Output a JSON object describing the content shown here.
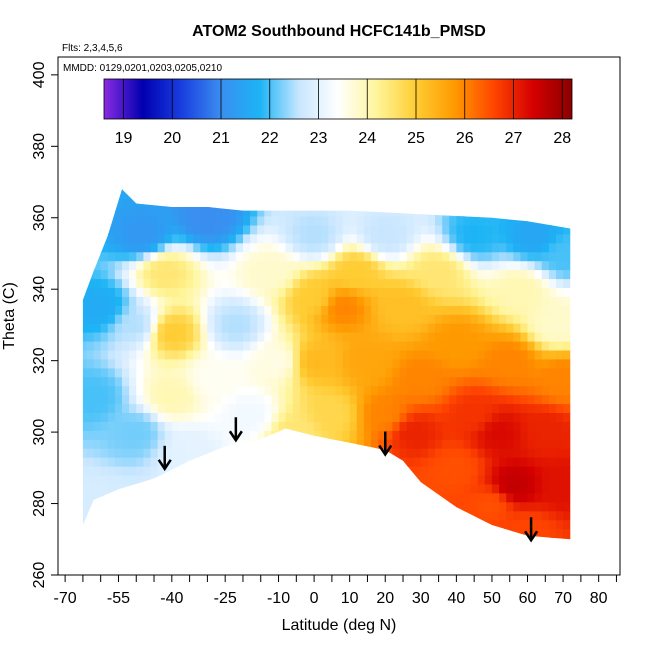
{
  "chart_data": {
    "type": "heatmap",
    "title": "ATOM2 Southbound HCFC141b_PMSD",
    "flights_note": "Flts: 2,3,4,5,6",
    "dates_note": "MMDD: 0129,0201,0203,0205,0210",
    "xlabel": "Latitude (deg N)",
    "ylabel": "Theta (C)",
    "xlim": [
      -72,
      86
    ],
    "ylim": [
      260,
      405
    ],
    "x_ticks": [
      -70,
      -55,
      -40,
      -25,
      -10,
      0,
      10,
      20,
      30,
      40,
      50,
      60,
      70,
      80
    ],
    "x_tick_labels": [
      "-70",
      "-55",
      "-40",
      "-25",
      "-10",
      "0",
      "10",
      "20",
      "30",
      "40",
      "50",
      "60",
      "70",
      "80"
    ],
    "x_minor_ticks": [
      -65,
      -60,
      -50,
      -45,
      -35,
      -30,
      -20,
      -15,
      -5,
      5,
      15,
      25,
      35,
      45,
      55,
      65,
      75,
      85
    ],
    "y_ticks": [
      260,
      280,
      300,
      320,
      340,
      360,
      380,
      400
    ],
    "y_tick_labels": [
      "260",
      "280",
      "300",
      "320",
      "340",
      "360",
      "380",
      "400"
    ],
    "colorbar": {
      "min": 18.6,
      "max": 28.2,
      "ticks": [
        19,
        20,
        21,
        22,
        23,
        24,
        25,
        26,
        27,
        28
      ],
      "tick_labels": [
        "19",
        "20",
        "21",
        "22",
        "23",
        "24",
        "25",
        "26",
        "27",
        "28"
      ],
      "colors": [
        "#8a2be2",
        "#0000b0",
        "#1a3fe0",
        "#3a8ef0",
        "#1cb4f5",
        "#c8e6ff",
        "#ffffff",
        "#fff59a",
        "#ffcc33",
        "#ff9900",
        "#ff4500",
        "#d40000",
        "#8b0000"
      ]
    },
    "data_outline": {
      "lower": [
        [
          -65,
          274
        ],
        [
          -62,
          281
        ],
        [
          -55,
          284
        ],
        [
          -45,
          287
        ],
        [
          -35,
          292
        ],
        [
          -25,
          296
        ],
        [
          -15,
          298
        ],
        [
          -8,
          301
        ],
        [
          0,
          299
        ],
        [
          10,
          297
        ],
        [
          20,
          295
        ],
        [
          25,
          292
        ],
        [
          30,
          286
        ],
        [
          40,
          279
        ],
        [
          50,
          274
        ],
        [
          60,
          271
        ],
        [
          72,
          270
        ]
      ],
      "upper": [
        [
          72,
          357
        ],
        [
          60,
          359
        ],
        [
          50,
          360
        ],
        [
          40,
          360.5
        ],
        [
          30,
          361
        ],
        [
          20,
          361.5
        ],
        [
          10,
          362
        ],
        [
          0,
          362
        ],
        [
          -10,
          362
        ],
        [
          -20,
          362
        ],
        [
          -30,
          363
        ],
        [
          -40,
          363
        ],
        [
          -50,
          364
        ],
        [
          -54,
          368
        ],
        [
          -58,
          355
        ],
        [
          -62,
          345
        ],
        [
          -65,
          337
        ]
      ]
    },
    "field_samples": [
      {
        "lat": -62,
        "theta": 280,
        "value": 22.8
      },
      {
        "lat": -62,
        "theta": 310,
        "value": 22.0
      },
      {
        "lat": -60,
        "theta": 335,
        "value": 21.6
      },
      {
        "lat": -50,
        "theta": 300,
        "value": 22.2
      },
      {
        "lat": -50,
        "theta": 330,
        "value": 22.5
      },
      {
        "lat": -48,
        "theta": 355,
        "value": 21.2
      },
      {
        "lat": -42,
        "theta": 345,
        "value": 24.5
      },
      {
        "lat": -40,
        "theta": 328,
        "value": 25.0
      },
      {
        "lat": -40,
        "theta": 310,
        "value": 24.0
      },
      {
        "lat": -35,
        "theta": 295,
        "value": 23.0
      },
      {
        "lat": -30,
        "theta": 360,
        "value": 21.0
      },
      {
        "lat": -28,
        "theta": 315,
        "value": 23.5
      },
      {
        "lat": -22,
        "theta": 330,
        "value": 22.5
      },
      {
        "lat": -18,
        "theta": 305,
        "value": 23.2
      },
      {
        "lat": -12,
        "theta": 345,
        "value": 23.8
      },
      {
        "lat": -10,
        "theta": 320,
        "value": 23.6
      },
      {
        "lat": -5,
        "theta": 300,
        "value": 24.5
      },
      {
        "lat": 0,
        "theta": 355,
        "value": 22.5
      },
      {
        "lat": 0,
        "theta": 338,
        "value": 25.0
      },
      {
        "lat": 0,
        "theta": 320,
        "value": 25.3
      },
      {
        "lat": 5,
        "theta": 305,
        "value": 24.8
      },
      {
        "lat": 8,
        "theta": 335,
        "value": 26.0
      },
      {
        "lat": 12,
        "theta": 345,
        "value": 25.0
      },
      {
        "lat": 15,
        "theta": 320,
        "value": 25.6
      },
      {
        "lat": 20,
        "theta": 305,
        "value": 26.0
      },
      {
        "lat": 20,
        "theta": 355,
        "value": 22.6
      },
      {
        "lat": 25,
        "theta": 335,
        "value": 25.2
      },
      {
        "lat": 28,
        "theta": 300,
        "value": 27.0
      },
      {
        "lat": 30,
        "theta": 315,
        "value": 26.0
      },
      {
        "lat": 35,
        "theta": 345,
        "value": 24.5
      },
      {
        "lat": 40,
        "theta": 290,
        "value": 26.5
      },
      {
        "lat": 40,
        "theta": 325,
        "value": 25.8
      },
      {
        "lat": 45,
        "theta": 305,
        "value": 26.8
      },
      {
        "lat": 45,
        "theta": 355,
        "value": 21.8
      },
      {
        "lat": 50,
        "theta": 280,
        "value": 26.5
      },
      {
        "lat": 52,
        "theta": 300,
        "value": 27.3
      },
      {
        "lat": 55,
        "theta": 320,
        "value": 26.0
      },
      {
        "lat": 56,
        "theta": 285,
        "value": 27.6
      },
      {
        "lat": 58,
        "theta": 340,
        "value": 24.0
      },
      {
        "lat": 60,
        "theta": 272,
        "value": 26.6
      },
      {
        "lat": 62,
        "theta": 355,
        "value": 21.5
      },
      {
        "lat": 65,
        "theta": 300,
        "value": 27.0
      },
      {
        "lat": 68,
        "theta": 330,
        "value": 23.8
      },
      {
        "lat": 70,
        "theta": 285,
        "value": 27.2
      },
      {
        "lat": 70,
        "theta": 315,
        "value": 26.0
      },
      {
        "lat": 70,
        "theta": 350,
        "value": 22.0
      }
    ],
    "arrows": [
      {
        "lat": -42,
        "theta": 290
      },
      {
        "lat": -22,
        "theta": 298
      },
      {
        "lat": 20,
        "theta": 294
      },
      {
        "lat": 61,
        "theta": 270
      }
    ]
  }
}
